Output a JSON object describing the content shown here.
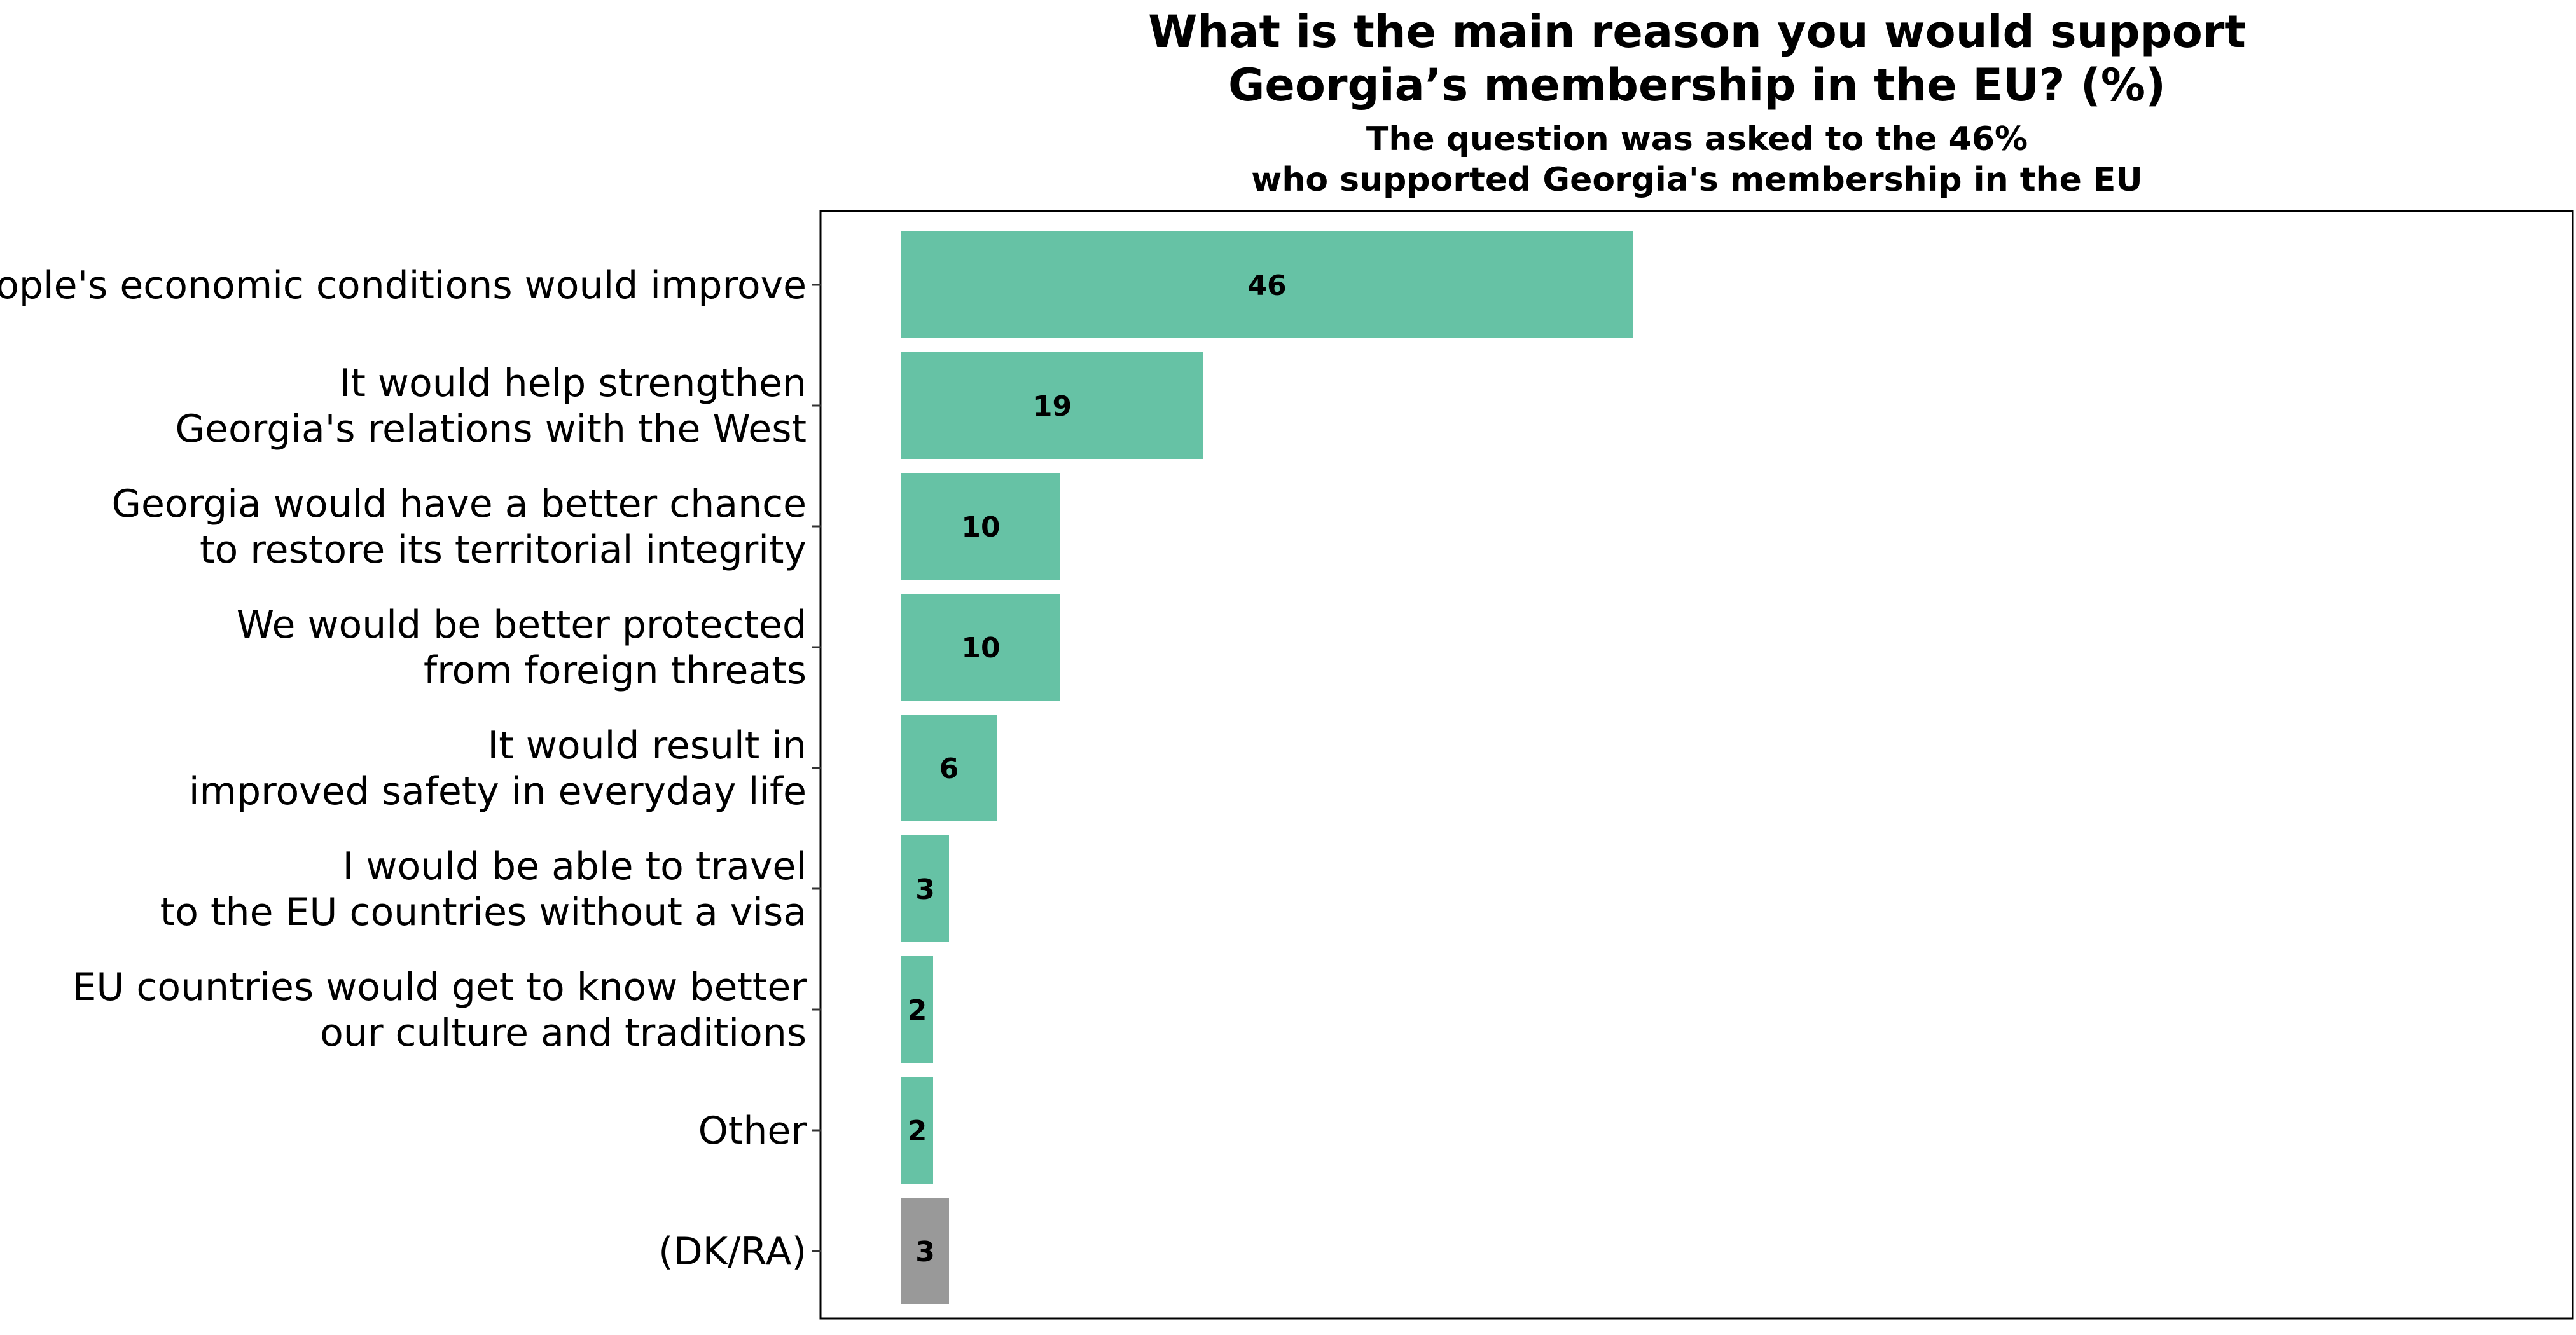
{
  "chart_data": {
    "type": "bar",
    "orientation": "horizontal",
    "title": "What is the main reason you would support Georgia’s membership in the EU? (%)",
    "title_lines": [
      "What is the main reason you would support",
      "Georgia’s membership in the EU? (%)"
    ],
    "subtitle": "The question was asked to the 46% who supported Georgia's membership in the EU",
    "subtitle_lines": [
      "The question was asked to the 46%",
      "who supported Georgia's membership in the EU"
    ],
    "xlabel": "",
    "ylabel": "",
    "xlim": [
      0,
      105
    ],
    "grid": false,
    "legend": "none",
    "categories": [
      "People's economic conditions would improve",
      "It would help strengthen Georgia's relations with the West",
      "Georgia would have a better chance to restore its territorial integrity",
      "We would be better protected from foreign threats",
      "It would result in improved safety in everyday life",
      "I would be able to travel to the EU countries without a visa",
      "EU countries would get to know better our culture and traditions",
      "Other",
      "(DK/RA)"
    ],
    "category_lines": [
      [
        "People's economic conditions would improve"
      ],
      [
        "It would help strengthen",
        "Georgia's relations with the West"
      ],
      [
        "Georgia would have a better chance",
        "to restore its territorial integrity"
      ],
      [
        "We would be better protected",
        "from foreign threats"
      ],
      [
        "It would result in",
        "improved safety in everyday life"
      ],
      [
        "I would be able to travel",
        "to the EU countries without a visa"
      ],
      [
        "EU countries would get to know better",
        "our culture and traditions"
      ],
      [
        "Other"
      ],
      [
        "(DK/RA)"
      ]
    ],
    "values": [
      46,
      19,
      10,
      10,
      6,
      3,
      2,
      2,
      3
    ],
    "value_labels": [
      "46",
      "19",
      "10",
      "10",
      "6",
      "3",
      "2",
      "2",
      "3"
    ],
    "bar_colors": [
      "#66c2a5",
      "#66c2a5",
      "#66c2a5",
      "#66c2a5",
      "#66c2a5",
      "#66c2a5",
      "#66c2a5",
      "#66c2a5",
      "#999999"
    ]
  },
  "colors": {
    "main_bar": "#66c2a5",
    "dkra_bar": "#999999",
    "panel_border": "#000000",
    "background": "#ffffff"
  }
}
